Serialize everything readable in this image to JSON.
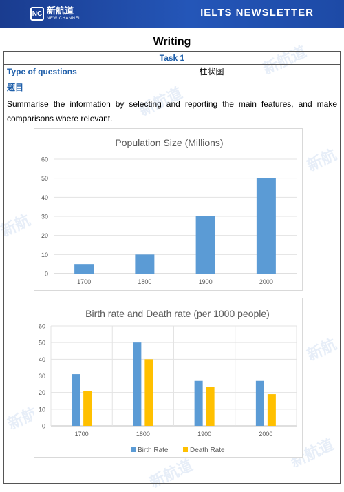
{
  "header": {
    "logo_mark": "NC",
    "logo_cn": "新航道",
    "logo_en": "NEW CHANNEL",
    "title": "IELTS NEWSLETTER"
  },
  "page_title": "Writing",
  "task_label": "Task 1",
  "type_label": "Type of questions",
  "type_value": "柱状图",
  "question_label": "题目",
  "prompt": "Summarise the information by selecting and reporting the main features, and make comparisons where relevant.",
  "colors": {
    "header": "#1f4fae",
    "accent": "#1f5faa",
    "bar_blue": "#5b9bd5",
    "bar_gold": "#ffc000"
  },
  "chart_data": [
    {
      "type": "bar",
      "title": "Population Size (Millions)",
      "categories": [
        "1700",
        "1800",
        "1900",
        "2000"
      ],
      "series": [
        {
          "name": "",
          "values": [
            5,
            10,
            30,
            50
          ],
          "color": "#5b9bd5"
        }
      ],
      "ylim": [
        0,
        60
      ],
      "yticks": [
        "0",
        "10",
        "20",
        "30",
        "40",
        "50",
        "60"
      ],
      "grid": true,
      "legend": "none"
    },
    {
      "type": "bar",
      "title": "Birth rate and Death rate (per 1000 people)",
      "categories": [
        "1700",
        "1800",
        "1900",
        "2000"
      ],
      "series": [
        {
          "name": "Birth Rate",
          "values": [
            31,
            50,
            27,
            27
          ],
          "color": "#5b9bd5"
        },
        {
          "name": "Death Rate",
          "values": [
            21,
            40,
            23.5,
            19
          ],
          "color": "#ffc000"
        }
      ],
      "ylim": [
        0,
        60
      ],
      "yticks": [
        "0",
        "10",
        "20",
        "30",
        "40",
        "50",
        "60"
      ],
      "grid": true,
      "legend": "bottom"
    }
  ]
}
